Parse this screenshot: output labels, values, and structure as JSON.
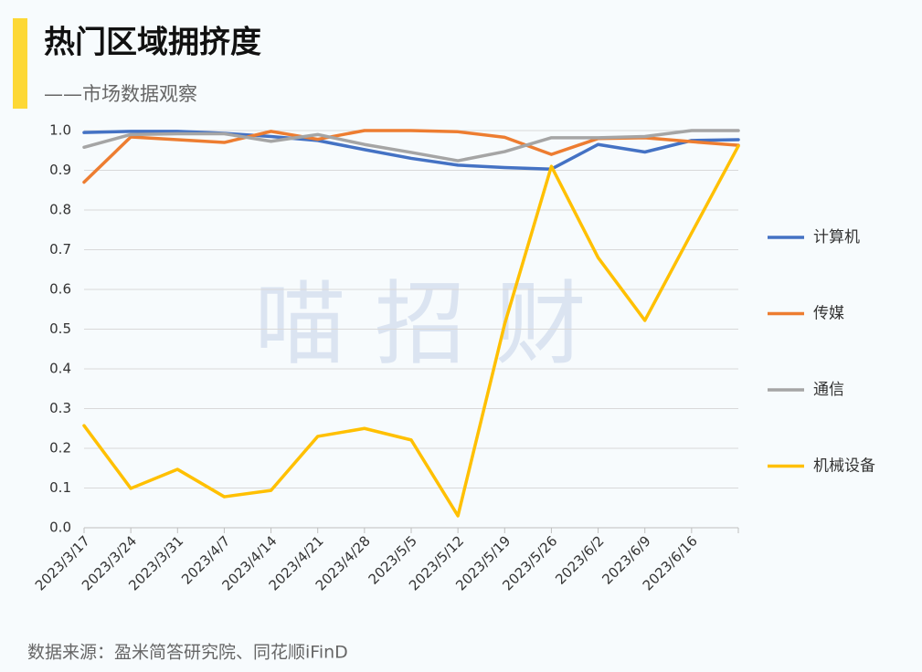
{
  "chart_data": {
    "type": "line",
    "title": "热门区域拥挤度",
    "subtitle": "——市场数据观察",
    "source": "数据来源：盈米简答研究院、同花顺iFinD",
    "watermark": "喵 招 财",
    "categories": [
      "2023/3/17",
      "2023/3/24",
      "2023/3/31",
      "2023/4/7",
      "2023/4/14",
      "2023/4/21",
      "2023/4/28",
      "2023/5/5",
      "2023/5/12",
      "2023/5/19",
      "2023/5/26",
      "2023/6/2",
      "2023/6/9",
      "2023/6/16",
      null
    ],
    "series": [
      {
        "name": "计算机",
        "color": "#4472c4",
        "values": [
          0.995,
          0.998,
          0.998,
          0.993,
          0.985,
          0.975,
          0.952,
          0.93,
          0.913,
          0.907,
          0.903,
          0.965,
          0.946,
          0.975,
          0.977
        ]
      },
      {
        "name": "传媒",
        "color": "#ed7d31",
        "values": [
          0.87,
          0.984,
          0.977,
          0.97,
          0.998,
          0.978,
          1.0,
          1.0,
          0.997,
          0.983,
          0.94,
          0.98,
          0.982,
          0.972,
          0.963
        ]
      },
      {
        "name": "通信",
        "color": "#a5a5a5",
        "values": [
          0.958,
          0.99,
          0.992,
          0.992,
          0.973,
          0.99,
          0.965,
          0.945,
          0.924,
          0.947,
          0.982,
          0.982,
          0.985,
          1.0,
          1.0
        ]
      },
      {
        "name": "机械设备",
        "color": "#ffc000",
        "values": [
          0.257,
          0.099,
          0.147,
          0.078,
          0.094,
          0.23,
          0.25,
          0.221,
          0.03,
          0.513,
          0.91,
          0.68,
          0.522,
          0.742,
          0.961
        ]
      }
    ],
    "ylim": [
      0,
      1.0
    ],
    "yticks": [
      {
        "value": 0,
        "label": "0.0"
      },
      0.1,
      0.2,
      0.3,
      0.4,
      0.5,
      0.6,
      0.7,
      0.8,
      0.9,
      {
        "value": 1.0,
        "label": "1.0"
      }
    ],
    "grid": true,
    "legend": "right"
  }
}
